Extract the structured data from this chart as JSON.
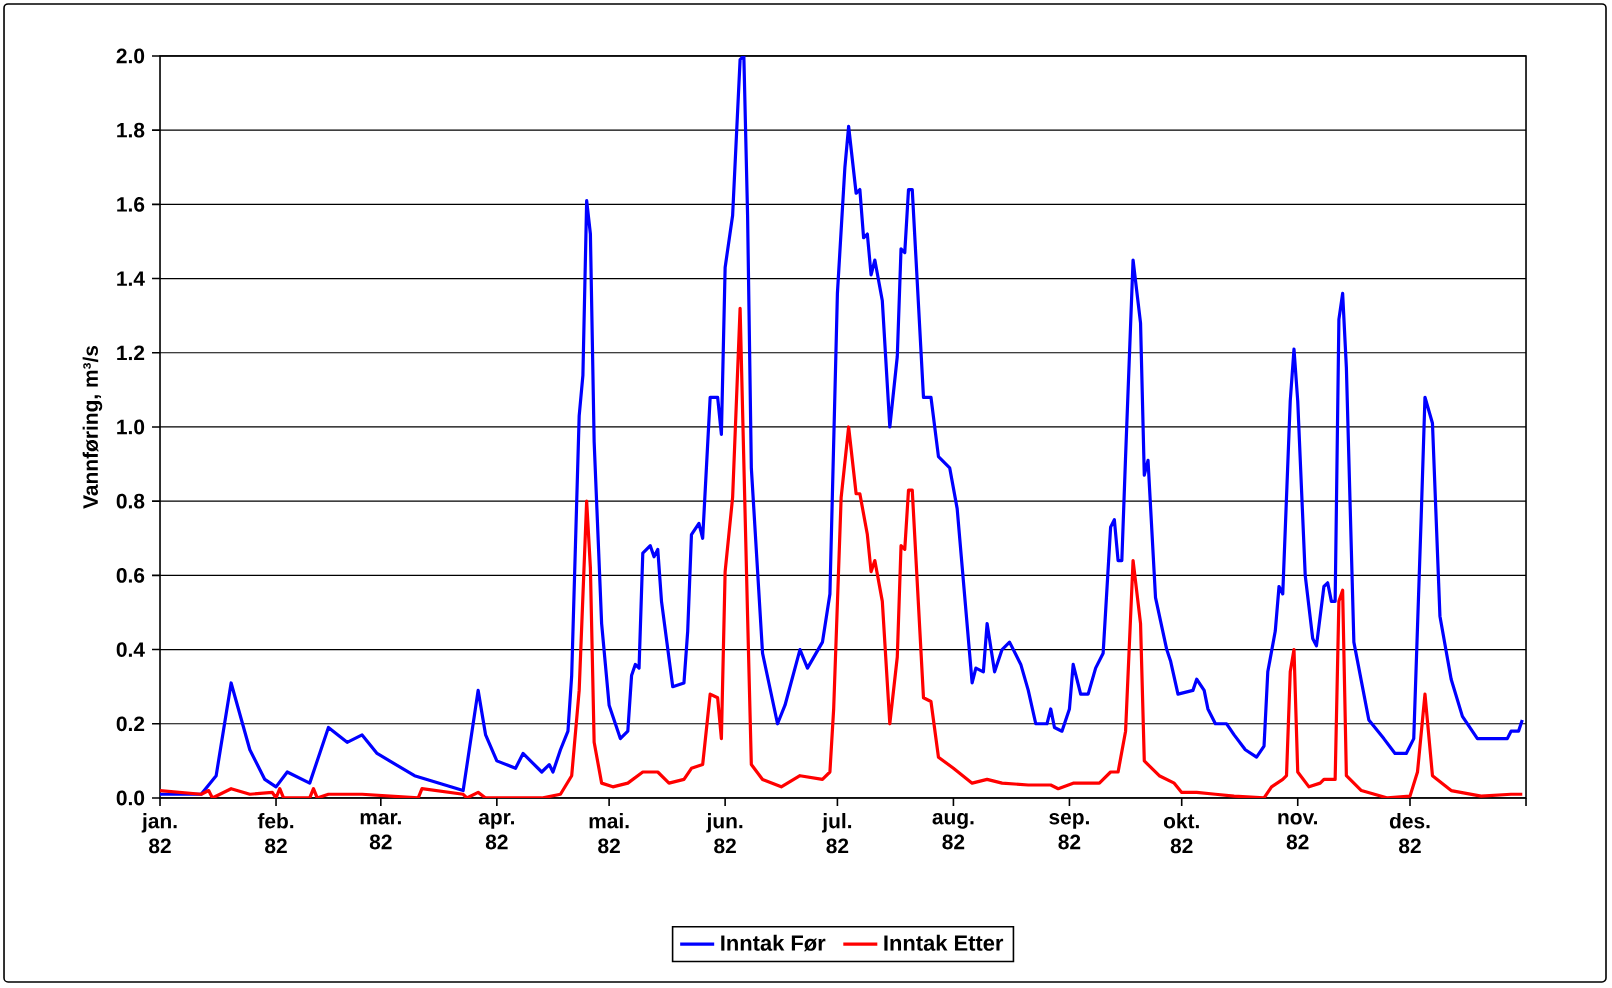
{
  "chart_data": {
    "type": "line",
    "ylabel": "Vannføring, m³/s",
    "xlim": [
      "1982-01-01",
      "1983-01-01"
    ],
    "ylim": [
      0,
      2.0
    ],
    "xticks": [
      {
        "value": "1982-01-01",
        "label": "jan. 82"
      },
      {
        "value": "1982-02-01",
        "label": "feb. 82"
      },
      {
        "value": "1982-03-01",
        "label": "mar. 82"
      },
      {
        "value": "1982-04-01",
        "label": "apr. 82"
      },
      {
        "value": "1982-05-01",
        "label": "mai. 82"
      },
      {
        "value": "1982-06-01",
        "label": "jun. 82"
      },
      {
        "value": "1982-07-01",
        "label": "jul. 82"
      },
      {
        "value": "1982-08-01",
        "label": "aug. 82"
      },
      {
        "value": "1982-09-01",
        "label": "sep. 82"
      },
      {
        "value": "1982-10-01",
        "label": "okt. 82"
      },
      {
        "value": "1982-11-01",
        "label": "nov. 82"
      },
      {
        "value": "1982-12-01",
        "label": "des. 82"
      },
      {
        "value": "1983-01-01",
        "label": null
      }
    ],
    "yticks": [
      {
        "value": 0,
        "label": "0.0"
      },
      0.2,
      0.4,
      0.6,
      0.8,
      {
        "value": 1.0,
        "label": "1.0"
      },
      1.2,
      1.4,
      1.6,
      1.8,
      {
        "value": 2.0,
        "label": "2.0"
      }
    ],
    "grid": "y",
    "legend": "bottom",
    "line_style": "solid",
    "series": [
      {
        "name": "Inntak Før",
        "color": "#0000ff",
        "x": [
          "1982-01-01",
          "1982-01-12",
          "1982-01-16",
          "1982-01-20",
          "1982-01-25",
          "1982-01-29",
          "1982-02-01",
          "1982-02-04",
          "1982-02-10",
          "1982-02-15",
          "1982-02-20",
          "1982-02-24",
          "1982-02-28",
          "1982-03-10",
          "1982-03-23",
          "1982-03-27",
          "1982-03-29",
          "1982-04-01",
          "1982-04-06",
          "1982-04-08",
          "1982-04-13",
          "1982-04-15",
          "1982-04-16",
          "1982-04-18",
          "1982-04-20",
          "1982-04-21",
          "1982-04-23",
          "1982-04-24",
          "1982-04-25",
          "1982-04-26",
          "1982-04-27",
          "1982-04-29",
          "1982-05-01",
          "1982-05-04",
          "1982-05-06",
          "1982-05-07",
          "1982-05-08",
          "1982-05-09",
          "1982-05-10",
          "1982-05-12",
          "1982-05-13",
          "1982-05-14",
          "1982-05-15",
          "1982-05-18",
          "1982-05-21",
          "1982-05-22",
          "1982-05-23",
          "1982-05-25",
          "1982-05-26",
          "1982-05-28",
          "1982-05-30",
          "1982-05-31",
          "1982-06-01",
          "1982-06-03",
          "1982-06-05",
          "1982-06-06",
          "1982-06-07",
          "1982-06-08",
          "1982-06-11",
          "1982-06-15",
          "1982-06-17",
          "1982-06-21",
          "1982-06-23",
          "1982-06-27",
          "1982-06-29",
          "1982-07-01",
          "1982-07-03",
          "1982-07-04",
          "1982-07-06",
          "1982-07-07",
          "1982-07-08",
          "1982-07-09",
          "1982-07-10",
          "1982-07-11",
          "1982-07-13",
          "1982-07-15",
          "1982-07-17",
          "1982-07-18",
          "1982-07-19",
          "1982-07-20",
          "1982-07-21",
          "1982-07-24",
          "1982-07-26",
          "1982-07-28",
          "1982-07-31",
          "1982-08-02",
          "1982-08-06",
          "1982-08-07",
          "1982-08-09",
          "1982-08-10",
          "1982-08-12",
          "1982-08-14",
          "1982-08-16",
          "1982-08-19",
          "1982-08-21",
          "1982-08-23",
          "1982-08-26",
          "1982-08-27",
          "1982-08-28",
          "1982-08-30",
          "1982-09-01",
          "1982-09-02",
          "1982-09-04",
          "1982-09-06",
          "1982-09-08",
          "1982-09-10",
          "1982-09-12",
          "1982-09-13",
          "1982-09-14",
          "1982-09-15",
          "1982-09-16",
          "1982-09-18",
          "1982-09-20",
          "1982-09-21",
          "1982-09-22",
          "1982-09-24",
          "1982-09-27",
          "1982-09-28",
          "1982-09-30",
          "1982-10-04",
          "1982-10-05",
          "1982-10-07",
          "1982-10-08",
          "1982-10-10",
          "1982-10-13",
          "1982-10-15",
          "1982-10-18",
          "1982-10-21",
          "1982-10-23",
          "1982-10-24",
          "1982-10-26",
          "1982-10-27",
          "1982-10-28",
          "1982-10-30",
          "1982-10-31",
          "1982-11-01",
          "1982-11-03",
          "1982-11-05",
          "1982-11-06",
          "1982-11-08",
          "1982-11-09",
          "1982-11-10",
          "1982-11-11",
          "1982-11-12",
          "1982-11-13",
          "1982-11-14",
          "1982-11-16",
          "1982-11-20",
          "1982-11-24",
          "1982-11-27",
          "1982-11-30",
          "1982-12-02",
          "1982-12-04",
          "1982-12-05",
          "1982-12-07",
          "1982-12-09",
          "1982-12-12",
          "1982-12-15",
          "1982-12-19",
          "1982-12-27",
          "1982-12-28",
          "1982-12-30",
          "1982-12-31"
        ],
        "values": [
          0.01,
          0.01,
          0.06,
          0.31,
          0.13,
          0.05,
          0.03,
          0.07,
          0.04,
          0.19,
          0.15,
          0.17,
          0.12,
          0.06,
          0.02,
          0.29,
          0.17,
          0.1,
          0.08,
          0.12,
          0.07,
          0.09,
          0.07,
          0.13,
          0.18,
          0.33,
          1.03,
          1.14,
          1.61,
          1.52,
          0.96,
          0.47,
          0.25,
          0.16,
          0.18,
          0.33,
          0.36,
          0.35,
          0.66,
          0.68,
          0.65,
          0.67,
          0.53,
          0.3,
          0.31,
          0.45,
          0.71,
          0.74,
          0.7,
          1.08,
          1.08,
          0.98,
          1.43,
          1.57,
          1.99,
          2.0,
          1.57,
          0.89,
          0.39,
          0.2,
          0.25,
          0.4,
          0.35,
          0.42,
          0.55,
          1.36,
          1.7,
          1.81,
          1.63,
          1.64,
          1.51,
          1.52,
          1.41,
          1.45,
          1.34,
          1.0,
          1.19,
          1.48,
          1.47,
          1.64,
          1.64,
          1.08,
          1.08,
          0.92,
          0.89,
          0.78,
          0.31,
          0.35,
          0.34,
          0.47,
          0.34,
          0.4,
          0.42,
          0.36,
          0.29,
          0.2,
          0.2,
          0.24,
          0.19,
          0.18,
          0.24,
          0.36,
          0.28,
          0.28,
          0.35,
          0.39,
          0.73,
          0.75,
          0.64,
          0.64,
          0.92,
          1.45,
          1.28,
          0.87,
          0.91,
          0.54,
          0.4,
          0.37,
          0.28,
          0.29,
          0.32,
          0.29,
          0.24,
          0.2,
          0.2,
          0.17,
          0.13,
          0.11,
          0.14,
          0.34,
          0.45,
          0.57,
          0.55,
          1.07,
          1.21,
          1.07,
          0.6,
          0.43,
          0.41,
          0.57,
          0.58,
          0.53,
          0.53,
          1.29,
          1.36,
          1.16,
          0.42,
          0.21,
          0.16,
          0.12,
          0.12,
          0.16,
          0.76,
          1.08,
          1.01,
          0.49,
          0.32,
          0.22,
          0.16,
          0.16,
          0.18,
          0.18,
          0.21
        ]
      },
      {
        "name": "Inntak Etter",
        "color": "#ff0000",
        "x": [
          "1982-01-01",
          "1982-01-12",
          "1982-01-14",
          "1982-01-15",
          "1982-01-20",
          "1982-01-25",
          "1982-01-31",
          "1982-02-01",
          "1982-02-02",
          "1982-02-03",
          "1982-02-10",
          "1982-02-11",
          "1982-02-12",
          "1982-02-15",
          "1982-02-24",
          "1982-03-11",
          "1982-03-12",
          "1982-03-23",
          "1982-03-24",
          "1982-03-27",
          "1982-03-29",
          "1982-04-13",
          "1982-04-18",
          "1982-04-21",
          "1982-04-23",
          "1982-04-25",
          "1982-04-26",
          "1982-04-27",
          "1982-04-29",
          "1982-05-02",
          "1982-05-06",
          "1982-05-10",
          "1982-05-14",
          "1982-05-17",
          "1982-05-21",
          "1982-05-23",
          "1982-05-26",
          "1982-05-28",
          "1982-05-30",
          "1982-05-31",
          "1982-06-01",
          "1982-06-03",
          "1982-06-05",
          "1982-06-07",
          "1982-06-08",
          "1982-06-11",
          "1982-06-16",
          "1982-06-21",
          "1982-06-27",
          "1982-06-29",
          "1982-06-30",
          "1982-07-02",
          "1982-07-04",
          "1982-07-06",
          "1982-07-07",
          "1982-07-09",
          "1982-07-10",
          "1982-07-11",
          "1982-07-13",
          "1982-07-15",
          "1982-07-17",
          "1982-07-18",
          "1982-07-19",
          "1982-07-20",
          "1982-07-21",
          "1982-07-24",
          "1982-07-26",
          "1982-07-28",
          "1982-08-01",
          "1982-08-06",
          "1982-08-10",
          "1982-08-14",
          "1982-08-21",
          "1982-08-27",
          "1982-08-29",
          "1982-09-02",
          "1982-09-05",
          "1982-09-09",
          "1982-09-12",
          "1982-09-14",
          "1982-09-16",
          "1982-09-18",
          "1982-09-20",
          "1982-09-21",
          "1982-09-22",
          "1982-09-25",
          "1982-09-29",
          "1982-10-01",
          "1982-10-05",
          "1982-10-10",
          "1982-10-15",
          "1982-10-23",
          "1982-10-25",
          "1982-10-28",
          "1982-10-29",
          "1982-10-30",
          "1982-10-31",
          "1982-11-01",
          "1982-11-04",
          "1982-11-07",
          "1982-11-08",
          "1982-11-11",
          "1982-11-12",
          "1982-11-13",
          "1982-11-14",
          "1982-11-18",
          "1982-11-25",
          "1982-12-01",
          "1982-12-03",
          "1982-12-05",
          "1982-12-07",
          "1982-12-12",
          "1982-12-20",
          "1982-12-28",
          "1982-12-31"
        ],
        "values": [
          0.02,
          0.01,
          0.02,
          0.0,
          0.025,
          0.01,
          0.015,
          0.0,
          0.025,
          0.0,
          0.0,
          0.025,
          0.0,
          0.01,
          0.01,
          0.0,
          0.025,
          0.01,
          0.0,
          0.015,
          0.0,
          0.0,
          0.01,
          0.06,
          0.29,
          0.8,
          0.62,
          0.15,
          0.04,
          0.03,
          0.04,
          0.07,
          0.07,
          0.04,
          0.05,
          0.08,
          0.09,
          0.28,
          0.27,
          0.16,
          0.61,
          0.81,
          1.32,
          0.49,
          0.09,
          0.05,
          0.03,
          0.06,
          0.05,
          0.07,
          0.24,
          0.81,
          1.0,
          0.82,
          0.82,
          0.71,
          0.61,
          0.64,
          0.53,
          0.2,
          0.38,
          0.68,
          0.67,
          0.83,
          0.83,
          0.27,
          0.26,
          0.11,
          0.08,
          0.04,
          0.05,
          0.04,
          0.035,
          0.035,
          0.025,
          0.04,
          0.04,
          0.04,
          0.07,
          0.07,
          0.18,
          0.64,
          0.47,
          0.1,
          0.09,
          0.06,
          0.04,
          0.015,
          0.015,
          0.01,
          0.005,
          0.0,
          0.03,
          0.05,
          0.06,
          0.34,
          0.4,
          0.07,
          0.03,
          0.04,
          0.05,
          0.05,
          0.53,
          0.56,
          0.06,
          0.02,
          0.0,
          0.005,
          0.07,
          0.28,
          0.06,
          0.02,
          0.005,
          0.01,
          0.01
        ]
      }
    ]
  }
}
